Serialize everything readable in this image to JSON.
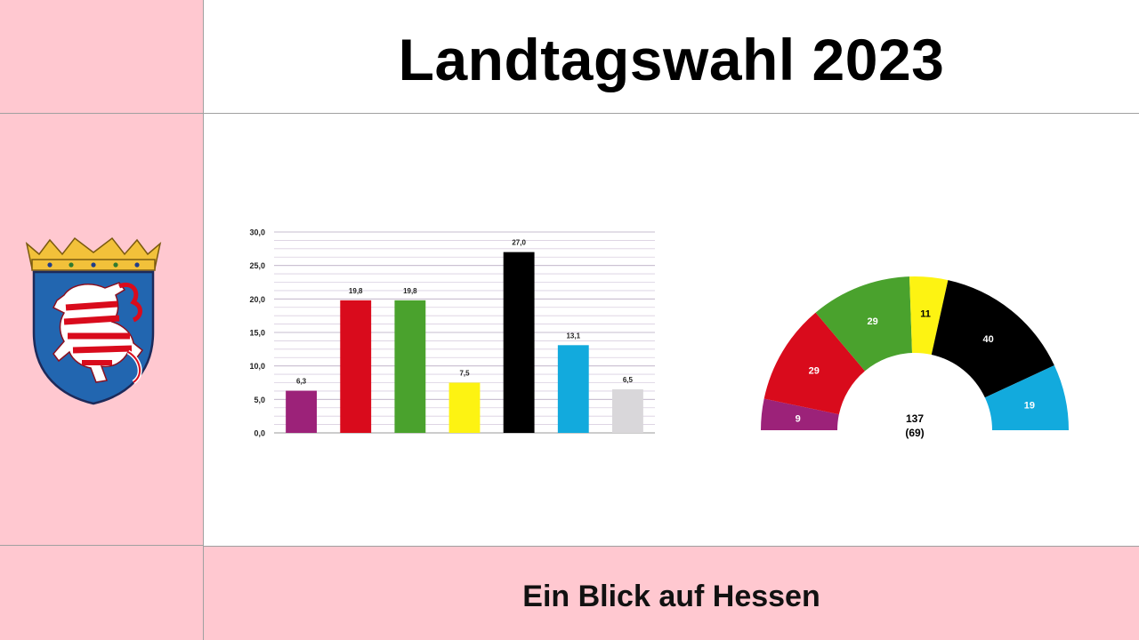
{
  "header": {
    "title": "Landtagswahl 2023"
  },
  "footer": {
    "text": "Ein Blick auf Hessen"
  },
  "colors": {
    "panel_background": "#ffc8d0",
    "content_background": "#ffffff",
    "grid_line": "#d9cfe0"
  },
  "emblem": {
    "name": "hessen-coat-of-arms-icon"
  },
  "chart_data": [
    {
      "type": "bar",
      "categories": [
        "",
        "",
        "",
        "",
        "",
        "",
        ""
      ],
      "values": [
        6.3,
        19.8,
        19.8,
        7.5,
        27.0,
        13.1,
        6.5
      ],
      "value_labels": [
        "6,3",
        "19,8",
        "19,8",
        "7,5",
        "27,0",
        "13,1",
        "6,5"
      ],
      "colors": [
        "#9c2279",
        "#d90b1c",
        "#4aa22d",
        "#fdf312",
        "#000000",
        "#12aadd",
        "#d9d7da"
      ],
      "ylim": [
        0,
        30
      ],
      "yticks": [
        0,
        5,
        10,
        15,
        20,
        25,
        30
      ],
      "ytick_labels": [
        "0,0",
        "5,0",
        "10,0",
        "15,0",
        "20,0",
        "25,0",
        "30,0"
      ],
      "grid": true,
      "legend": "none",
      "title": "",
      "xlabel": "",
      "ylabel": ""
    },
    {
      "type": "pie",
      "style": "semicircle-parliament",
      "values": [
        9,
        29,
        29,
        11,
        40,
        19
      ],
      "value_labels": [
        "9",
        "29",
        "29",
        "11",
        "40",
        "19"
      ],
      "colors": [
        "#9c2279",
        "#d90b1c",
        "#4aa22d",
        "#fdf312",
        "#000000",
        "#12aadd"
      ],
      "label_colors": [
        "#ffffff",
        "#ffffff",
        "#ffffff",
        "#000000",
        "#ffffff",
        "#ffffff"
      ],
      "total_label": "137",
      "majority_label": "(69)",
      "legend": "none",
      "title": ""
    }
  ]
}
